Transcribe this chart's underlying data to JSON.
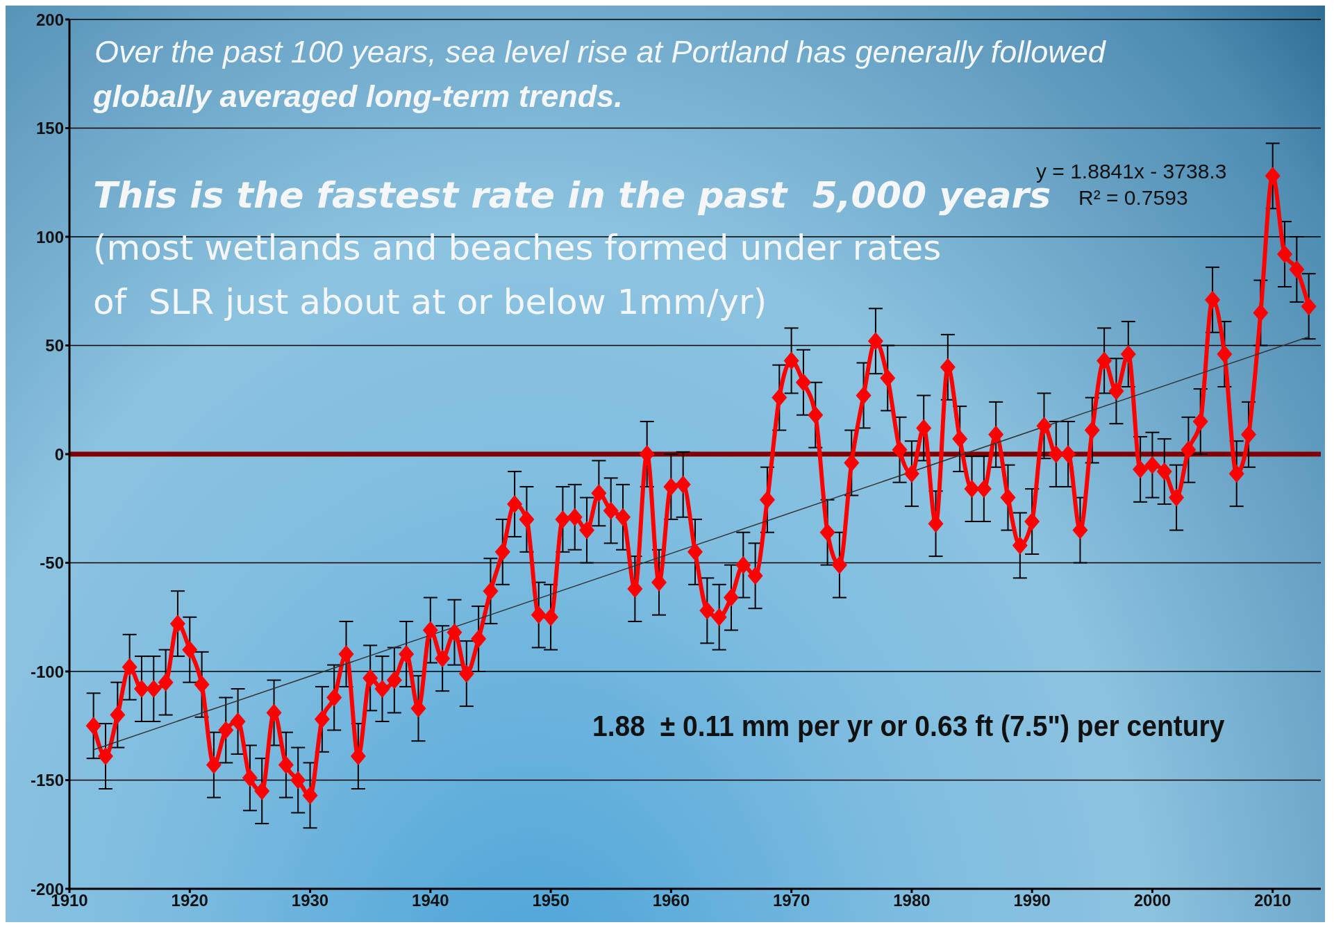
{
  "chart_data": {
    "type": "line",
    "annotations": [
      "Over the past 100 years, sea level rise at Portland has generally followed",
      "globally averaged long-term trends.",
      "This is the fastest rate in the past  5,000 years",
      "(most wetlands and beaches formed under rates",
      "of  SLR just about at or below 1mm/yr)",
      "y = 1.8841x - 3738.3",
      "R² = 0.7593",
      "1.88  ± 0.11 mm per yr or 0.63 ft (7.5\") per century"
    ],
    "x": [
      1912,
      1913,
      1914,
      1915,
      1916,
      1917,
      1918,
      1919,
      1920,
      1921,
      1922,
      1923,
      1924,
      1925,
      1926,
      1927,
      1928,
      1929,
      1930,
      1931,
      1932,
      1933,
      1934,
      1935,
      1936,
      1937,
      1938,
      1939,
      1940,
      1941,
      1942,
      1943,
      1944,
      1945,
      1946,
      1947,
      1948,
      1949,
      1950,
      1951,
      1952,
      1953,
      1954,
      1955,
      1956,
      1957,
      1958,
      1959,
      1960,
      1961,
      1962,
      1963,
      1964,
      1965,
      1966,
      1967,
      1968,
      1969,
      1970,
      1971,
      1972,
      1973,
      1974,
      1975,
      1976,
      1977,
      1978,
      1979,
      1980,
      1981,
      1982,
      1983,
      1984,
      1985,
      1986,
      1987,
      1988,
      1989,
      1990,
      1991,
      1992,
      1993,
      1994,
      1995,
      1996,
      1997,
      1998,
      1999,
      2000,
      2001,
      2002,
      2003,
      2004,
      2005,
      2006,
      2007,
      2008,
      2009,
      2010,
      2011,
      2012,
      2013
    ],
    "series": [
      {
        "color": "#ff0000",
        "marker": "diamond",
        "values": [
          -125,
          -139,
          -120,
          -98,
          -108,
          -108,
          -105,
          -78,
          -90,
          -106,
          -143,
          -127,
          -123,
          -149,
          -155,
          -119,
          -143,
          -150,
          -157,
          -122,
          -112,
          -92,
          -139,
          -103,
          -108,
          -104,
          -92,
          -117,
          -81,
          -94,
          -82,
          -101,
          -85,
          -63,
          -45,
          -23,
          -30,
          -74,
          -75,
          -30,
          -29,
          -35,
          -18,
          -26,
          -29,
          -62,
          0,
          -59,
          -15,
          -14,
          -45,
          -72,
          -75,
          -66,
          -51,
          -56,
          -21,
          26,
          43,
          33,
          18,
          -36,
          -51,
          -4,
          27,
          52,
          35,
          2,
          -9,
          12,
          -32,
          40,
          7,
          -16,
          -16,
          9,
          -20,
          -42,
          -31,
          13,
          0,
          0,
          -35,
          11,
          43,
          29,
          46,
          -7,
          -5,
          -8,
          -20,
          2,
          15,
          71,
          46,
          -9,
          9,
          65,
          128,
          92,
          85,
          68
        ],
        "errors": [
          15,
          15,
          15,
          15,
          15,
          15,
          15,
          15,
          15,
          15,
          15,
          15,
          15,
          15,
          15,
          15,
          15,
          15,
          15,
          15,
          15,
          15,
          15,
          15,
          15,
          15,
          15,
          15,
          15,
          15,
          15,
          15,
          15,
          15,
          15,
          15,
          15,
          15,
          15,
          15,
          15,
          15,
          15,
          15,
          15,
          15,
          15,
          15,
          15,
          15,
          15,
          15,
          15,
          15,
          15,
          15,
          15,
          15,
          15,
          15,
          15,
          15,
          15,
          15,
          15,
          15,
          15,
          15,
          15,
          15,
          15,
          15,
          15,
          15,
          15,
          15,
          15,
          15,
          15,
          15,
          15,
          15,
          15,
          15,
          15,
          15,
          15,
          15,
          15,
          15,
          15,
          15,
          15,
          15,
          15,
          15,
          15,
          15,
          15,
          15,
          15,
          15
        ]
      },
      {
        "color": "#333333",
        "marker": "none",
        "x": [
          1912,
          2013
        ],
        "values": [
          -136,
          54
        ]
      }
    ],
    "xlim": [
      1910,
      2014
    ],
    "xticks": [
      1910,
      1920,
      1930,
      1940,
      1950,
      1960,
      1970,
      1980,
      1990,
      2000,
      2010
    ],
    "ylim": [
      -200,
      200
    ],
    "yticks": [
      -200,
      -150,
      -100,
      -50,
      0,
      50,
      100,
      150,
      200
    ],
    "grid": "y",
    "ref_lines": [
      {
        "axis": "y",
        "value": 0,
        "color": "#800000"
      }
    ]
  }
}
